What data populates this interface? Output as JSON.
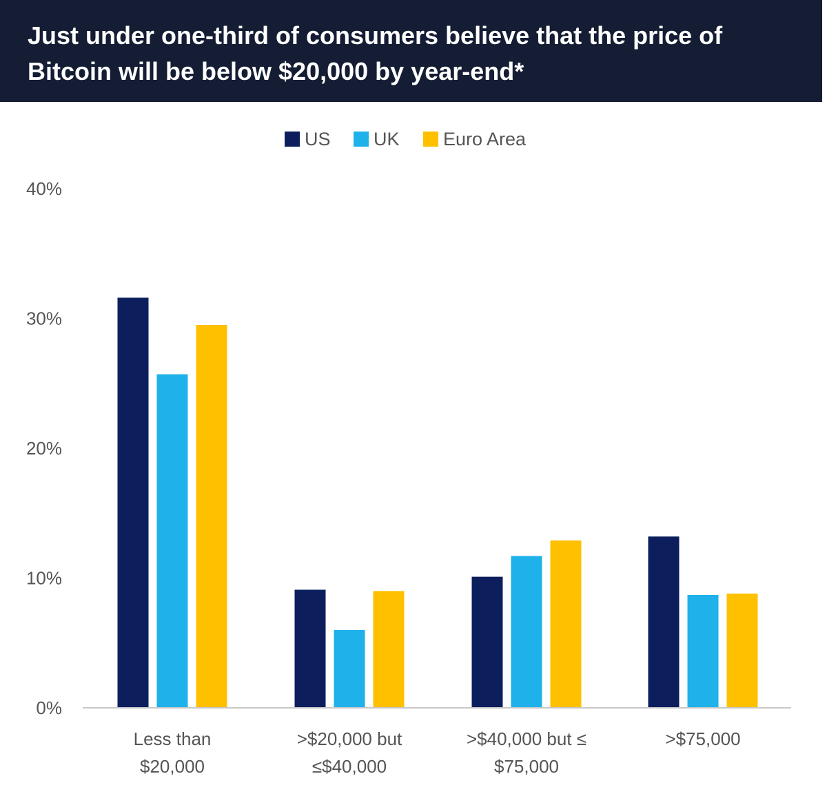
{
  "header": {
    "title": "Just under one-third of consumers believe that the price of Bitcoin will be below $20,000 by year-end*"
  },
  "colors": {
    "US": "#0c1f5c",
    "UK": "#1fb1ea",
    "Euro Area": "#ffc000",
    "header_bg": "#141d33",
    "axis": "#c8c8c8",
    "text": "#555555"
  },
  "chart_data": {
    "type": "bar",
    "title": "Just under one-third of consumers believe that the price of Bitcoin will be below $20,000 by year-end*",
    "xlabel": "",
    "ylabel": "",
    "ylim": [
      0,
      40
    ],
    "yticks": [
      0,
      10,
      20,
      30,
      40
    ],
    "ytick_labels": [
      "0%",
      "10%",
      "20%",
      "30%",
      "40%"
    ],
    "grid": false,
    "legend_position": "top-center",
    "categories": [
      [
        "Less than",
        "$20,000"
      ],
      [
        ">$20,000 but",
        "≤$40,000"
      ],
      [
        ">$40,000 but ≤",
        "$75,000"
      ],
      [
        ">$75,000"
      ]
    ],
    "series": [
      {
        "name": "US",
        "values": [
          31.6,
          9.1,
          10.1,
          13.2
        ]
      },
      {
        "name": "UK",
        "values": [
          25.7,
          6.0,
          11.7,
          8.7
        ]
      },
      {
        "name": "Euro Area",
        "values": [
          29.5,
          9.0,
          12.9,
          8.8
        ]
      }
    ]
  }
}
